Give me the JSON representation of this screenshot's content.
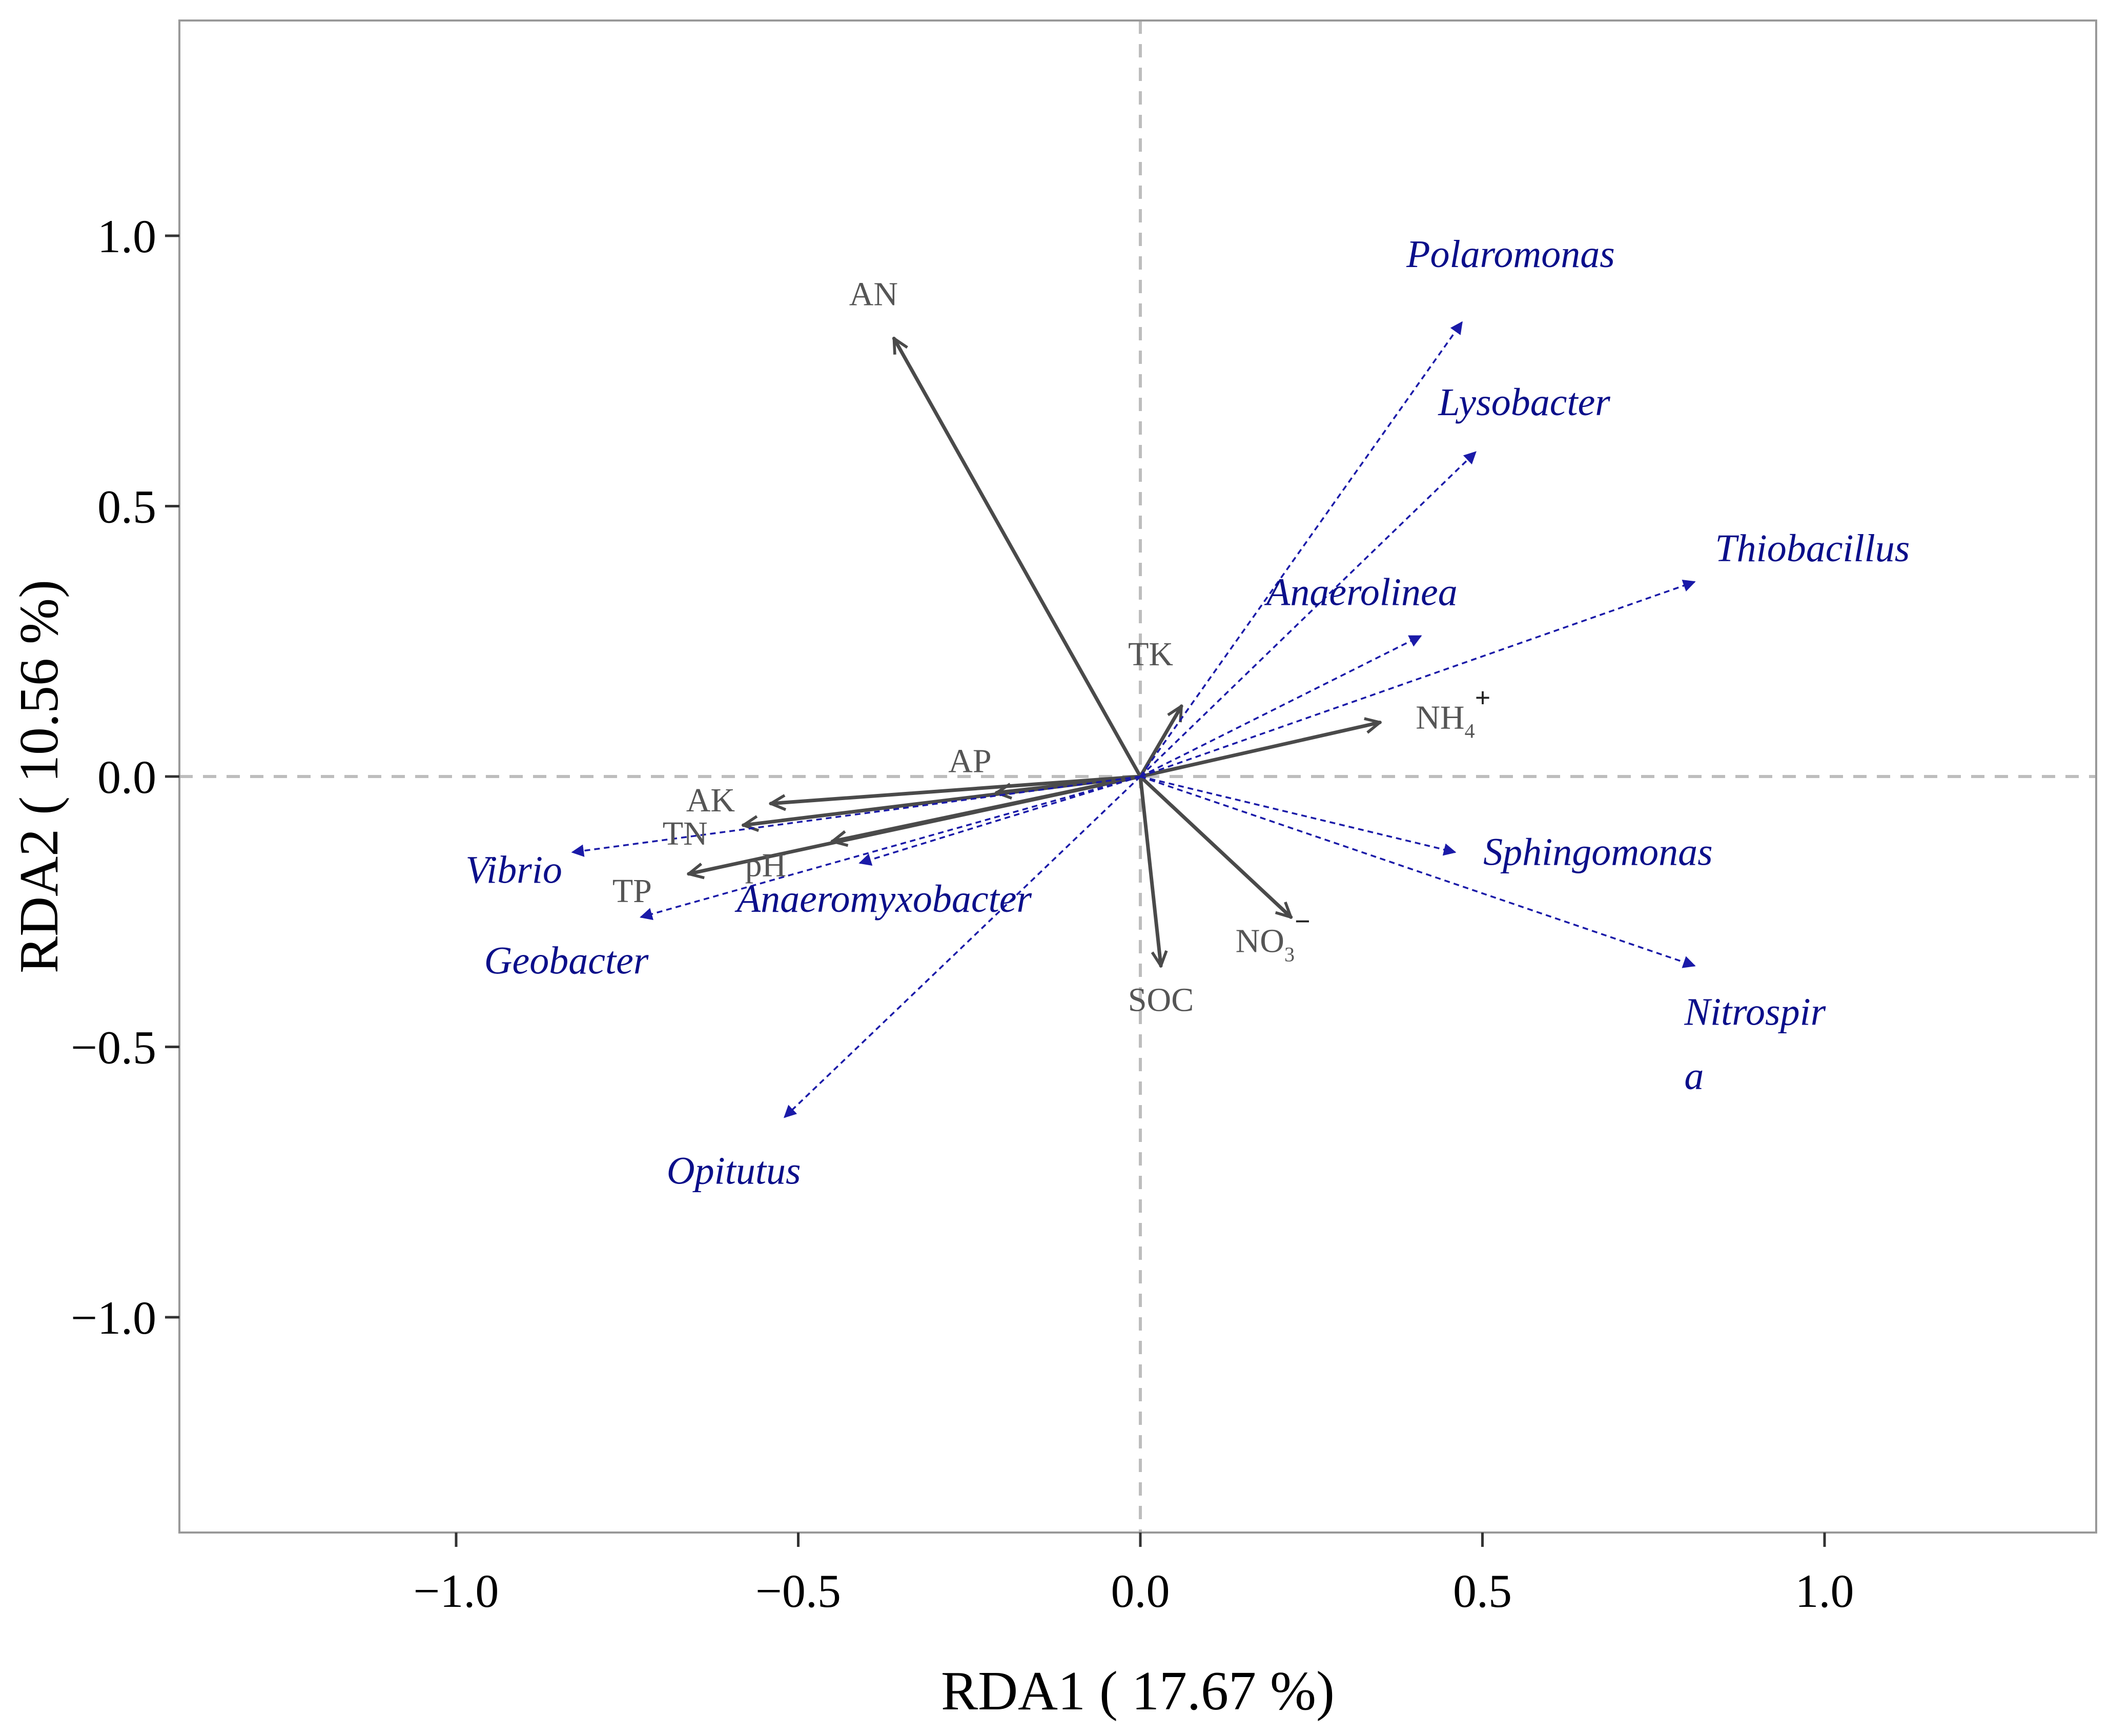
{
  "chart_data": {
    "type": "scatter",
    "subtype": "rda-biplot",
    "xlabel": "RDA1 ( 17.67 %)",
    "ylabel": "RDA2 ( 10.56 %)",
    "xlim": [
      -1.4,
      1.4
    ],
    "ylim": [
      -1.4,
      1.4
    ],
    "xticks": [
      {
        "value": -1.0,
        "label": "−1.0"
      },
      {
        "value": -0.5,
        "label": "−0.5"
      },
      {
        "value": 0.0,
        "label": "0.0"
      },
      {
        "value": 0.5,
        "label": "0.5"
      },
      {
        "value": 1.0,
        "label": "1.0"
      }
    ],
    "yticks": [
      {
        "value": -1.0,
        "label": "−1.0"
      },
      {
        "value": -0.5,
        "label": "−0.5"
      },
      {
        "value": 0.0,
        "label": "0.0"
      },
      {
        "value": 0.5,
        "label": "0.5"
      },
      {
        "value": 1.0,
        "label": "1.0"
      }
    ],
    "reference_lines": {
      "x": 0,
      "y": 0,
      "style": "dashed"
    },
    "colors": {
      "environment": "#4a4a4a",
      "species": "#1a1aa8",
      "species_text": "#0b0f8a",
      "reference": "#bdbdbd",
      "frame": "#999999"
    },
    "series": [
      {
        "name": "environmental factors",
        "style": "solid",
        "points": [
          {
            "id": "AN",
            "label": "AN",
            "x": -0.36,
            "y": 0.81
          },
          {
            "id": "TK",
            "label": "TK",
            "x": 0.06,
            "y": 0.13
          },
          {
            "id": "NH4",
            "label": "NH",
            "sub": "4",
            "sup": "+",
            "x": 0.35,
            "y": 0.1
          },
          {
            "id": "AP",
            "label": "AP",
            "x": -0.21,
            "y": -0.03
          },
          {
            "id": "AK",
            "label": "AK",
            "x": -0.54,
            "y": -0.05
          },
          {
            "id": "TN",
            "label": "TN",
            "x": -0.58,
            "y": -0.09
          },
          {
            "id": "pH",
            "label": "pH",
            "x": -0.45,
            "y": -0.12
          },
          {
            "id": "TP",
            "label": "TP",
            "x": -0.66,
            "y": -0.18
          },
          {
            "id": "SOC",
            "label": "SOC",
            "x": 0.03,
            "y": -0.35
          },
          {
            "id": "NO3",
            "label": "NO",
            "sub": "3",
            "sup": "−",
            "x": 0.22,
            "y": -0.26
          }
        ]
      },
      {
        "name": "genera",
        "style": "dashed",
        "points": [
          {
            "id": "Polaromonas",
            "label": "Polaromonas",
            "x": 0.47,
            "y": 0.84
          },
          {
            "id": "Lysobacter",
            "label": "Lysobacter",
            "x": 0.49,
            "y": 0.6
          },
          {
            "id": "Thiobacillus",
            "label": "Thiobacillus",
            "x": 0.81,
            "y": 0.36
          },
          {
            "id": "Anaerolinea",
            "label": "Anaerolinea",
            "x": 0.41,
            "y": 0.26
          },
          {
            "id": "Sphingomonas",
            "label": "Sphingomonas",
            "x": 0.46,
            "y": -0.14
          },
          {
            "id": "Nitrospira",
            "label": "Nitrospir",
            "label2": "a",
            "x": 0.81,
            "y": -0.35
          },
          {
            "id": "Vibrio",
            "label": "Vibrio",
            "x": -0.83,
            "y": -0.14
          },
          {
            "id": "Geobacter",
            "label": "Geobacter",
            "x": -0.73,
            "y": -0.26
          },
          {
            "id": "Anaeromyxobacter",
            "label": "Anaeromyxobacter",
            "x": -0.41,
            "y": -0.16
          },
          {
            "id": "Opitutus",
            "label": "Opitutus",
            "x": -0.52,
            "y": -0.63
          }
        ]
      }
    ]
  }
}
